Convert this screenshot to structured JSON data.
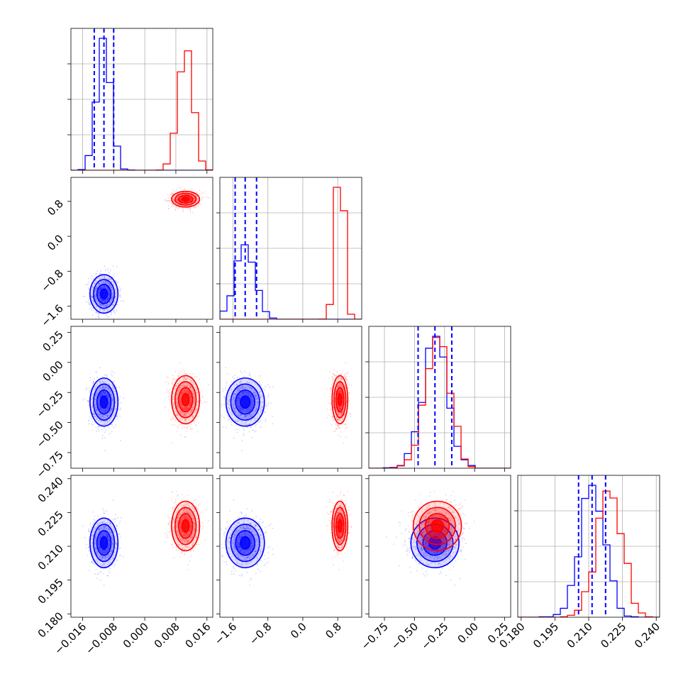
{
  "chart_data": {
    "type": "corner",
    "description_colors": {
      "blue": "#0000ff",
      "red": "#ff0000"
    },
    "grid": true,
    "params": [
      {
        "range": [
          -0.019,
          0.0175
        ],
        "ticks": [
          "-0.016",
          "-0.008",
          "0.000",
          "0.008",
          "0.016"
        ],
        "tick_values": [
          -0.016,
          -0.008,
          0.0,
          0.008,
          0.016
        ]
      },
      {
        "range": [
          -1.9,
          1.35
        ],
        "ticks": [
          "-1.6",
          "-0.8",
          "0.0",
          "0.8"
        ],
        "tick_values": [
          -1.6,
          -0.8,
          0.0,
          0.8
        ]
      },
      {
        "range": [
          -0.88,
          0.3
        ],
        "ticks": [
          "-0.75",
          "-0.50",
          "-0.25",
          "0.00",
          "0.25"
        ],
        "tick_values": [
          -0.75,
          -0.5,
          -0.25,
          0.0,
          0.25
        ]
      },
      {
        "range": [
          0.1785,
          0.2415
        ],
        "ticks": [
          "0.180",
          "0.195",
          "0.210",
          "0.225",
          "0.240"
        ],
        "tick_values": [
          0.18,
          0.195,
          0.21,
          0.225,
          0.24
        ]
      }
    ],
    "series": [
      {
        "color": "blue",
        "means": [
          -0.0105,
          -1.32,
          -0.33,
          0.2115
        ],
        "sigmas": [
          0.0018,
          0.22,
          0.1,
          0.0055
        ],
        "quantiles": [
          [
            -0.013,
            -0.0105,
            -0.008
          ],
          [
            -1.55,
            -1.32,
            -1.06
          ],
          [
            -0.47,
            -0.33,
            -0.19
          ],
          [
            0.2055,
            0.2115,
            0.2175
          ]
        ]
      },
      {
        "color": "red",
        "means": [
          0.0105,
          0.85,
          -0.31,
          0.219
        ],
        "sigmas": [
          0.0018,
          0.09,
          0.1,
          0.0055
        ],
        "quantiles": null
      }
    ]
  }
}
